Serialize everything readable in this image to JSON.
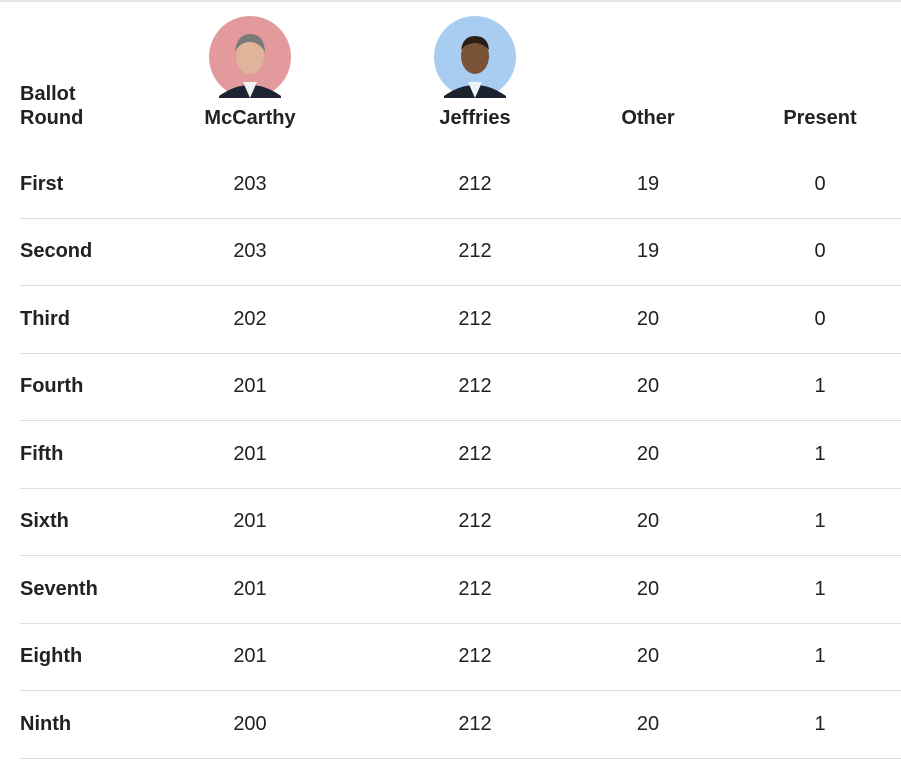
{
  "table": {
    "header": [
      "Ballot Round",
      "McCarthy",
      "Jeffries",
      "Other",
      "Present"
    ],
    "rows": [
      [
        "First",
        203,
        212,
        19,
        0
      ],
      [
        "Second",
        203,
        212,
        19,
        0
      ],
      [
        "Third",
        202,
        212,
        20,
        0
      ],
      [
        "Fourth",
        201,
        212,
        20,
        1
      ],
      [
        "Fifth",
        201,
        212,
        20,
        1
      ],
      [
        "Sixth",
        201,
        212,
        20,
        1
      ],
      [
        "Seventh",
        201,
        212,
        20,
        1
      ],
      [
        "Eighth",
        201,
        212,
        20,
        1
      ],
      [
        "Ninth",
        200,
        212,
        20,
        1
      ]
    ]
  }
}
